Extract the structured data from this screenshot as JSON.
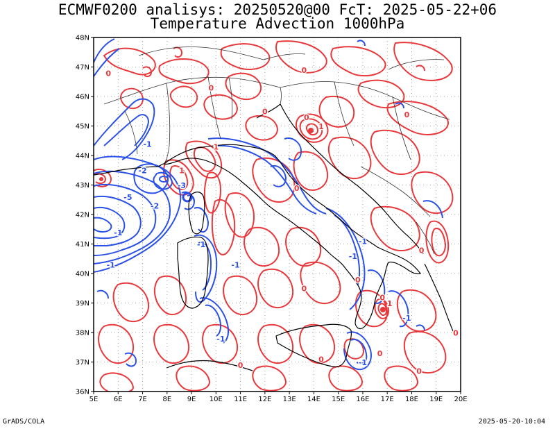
{
  "header": {
    "title_line1": "ECMWF0200 analisys: 20250520@00 FcT: 2025-05-22+06",
    "title_line2": "Temperature Advection 1000hPa"
  },
  "map": {
    "lon_range": [
      5,
      20
    ],
    "lat_range": [
      36,
      48
    ],
    "lon_labels": [
      "5E",
      "6E",
      "7E",
      "8E",
      "9E",
      "10E",
      "11E",
      "12E",
      "13E",
      "14E",
      "15E",
      "16E",
      "17E",
      "18E",
      "19E",
      "20E"
    ],
    "lat_labels": [
      "36N",
      "37N",
      "38N",
      "39N",
      "40N",
      "41N",
      "42N",
      "43N",
      "44N",
      "45N",
      "46N",
      "47N",
      "48N"
    ],
    "grid": "dotted",
    "colors": {
      "warm_advection": "#e8383c",
      "cold_advection": "#2a50e6",
      "coast": "#000000",
      "border": "#333333"
    },
    "contour_labels": [
      {
        "text": "0",
        "lon": 5.6,
        "lat": 46.7,
        "sign": "warm"
      },
      {
        "text": "-1",
        "lon": 7.2,
        "lat": 44.3,
        "sign": "cold"
      },
      {
        "text": "-2",
        "lon": 7.0,
        "lat": 43.4,
        "sign": "cold"
      },
      {
        "text": "-5",
        "lon": 6.4,
        "lat": 42.5,
        "sign": "cold"
      },
      {
        "text": "-2",
        "lon": 7.5,
        "lat": 42.2,
        "sign": "cold"
      },
      {
        "text": "-1",
        "lon": 6.0,
        "lat": 41.3,
        "sign": "cold"
      },
      {
        "text": "-1",
        "lon": 5.7,
        "lat": 40.2,
        "sign": "cold"
      },
      {
        "text": "-3",
        "lon": 8.6,
        "lat": 42.9,
        "sign": "cold"
      },
      {
        "text": "1",
        "lon": 10.0,
        "lat": 44.2,
        "sign": "warm"
      },
      {
        "text": "1",
        "lon": 8.6,
        "lat": 43.4,
        "sign": "warm"
      },
      {
        "text": "0",
        "lon": 12.0,
        "lat": 45.4,
        "sign": "warm"
      },
      {
        "text": "0",
        "lon": 13.7,
        "lat": 45.2,
        "sign": "warm"
      },
      {
        "text": "1",
        "lon": 14.3,
        "lat": 44.9,
        "sign": "warm"
      },
      {
        "text": "0",
        "lon": 17.8,
        "lat": 45.3,
        "sign": "warm"
      },
      {
        "text": "-1",
        "lon": 9.4,
        "lat": 40.9,
        "sign": "cold"
      },
      {
        "text": "-1",
        "lon": 10.8,
        "lat": 40.2,
        "sign": "cold"
      },
      {
        "text": "-1",
        "lon": 10.2,
        "lat": 37.7,
        "sign": "cold"
      },
      {
        "text": "-1",
        "lon": 16.0,
        "lat": 41.0,
        "sign": "cold"
      },
      {
        "text": "-1",
        "lon": 17.8,
        "lat": 38.4,
        "sign": "cold"
      },
      {
        "text": "-1",
        "lon": 16.0,
        "lat": 36.9,
        "sign": "cold"
      },
      {
        "text": "0",
        "lon": 13.6,
        "lat": 39.4,
        "sign": "warm"
      },
      {
        "text": "0",
        "lon": 15.8,
        "lat": 39.7,
        "sign": "warm"
      },
      {
        "text": "0",
        "lon": 16.8,
        "lat": 39.1,
        "sign": "warm"
      },
      {
        "text": "1",
        "lon": 17.1,
        "lat": 38.9,
        "sign": "warm"
      },
      {
        "text": "0",
        "lon": 16.7,
        "lat": 37.2,
        "sign": "warm"
      },
      {
        "text": "0",
        "lon": 14.3,
        "lat": 37.0,
        "sign": "warm"
      },
      {
        "text": "0",
        "lon": 11.0,
        "lat": 36.8,
        "sign": "warm"
      },
      {
        "text": "0",
        "lon": 13.3,
        "lat": 42.8,
        "sign": "warm"
      },
      {
        "text": "0",
        "lon": 18.4,
        "lat": 40.7,
        "sign": "warm"
      },
      {
        "text": "0",
        "lon": 18.3,
        "lat": 36.6,
        "sign": "warm"
      },
      {
        "text": "0",
        "lon": 19.8,
        "lat": 37.9,
        "sign": "warm"
      },
      {
        "text": "0",
        "lon": 9.8,
        "lat": 46.2,
        "sign": "warm"
      },
      {
        "text": "0",
        "lon": 13.6,
        "lat": 46.8,
        "sign": "warm"
      },
      {
        "text": "-1",
        "lon": 15.6,
        "lat": 40.5,
        "sign": "cold"
      }
    ]
  },
  "footer": {
    "credit": "GrADS/COLA",
    "timestamp": "2025-05-20-10:04"
  }
}
